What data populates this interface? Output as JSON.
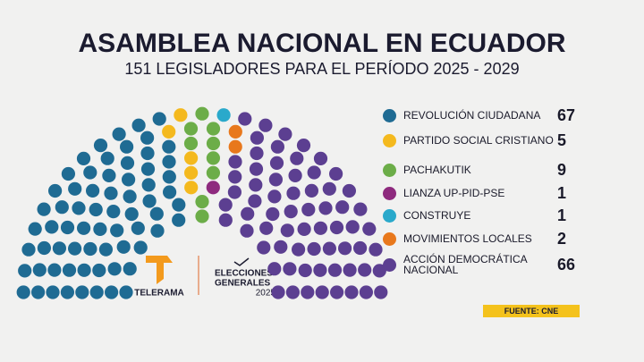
{
  "chart_data": {
    "type": "parliament",
    "title": "ASAMBLEA NACIONAL EN ECUADOR",
    "subtitle": "151 LEGISLADORES PARA EL PERÍODO 2025 - 2029",
    "categories": [
      "REVOLUCIÓN CIUDADANA",
      "PARTIDO SOCIAL CRISTIANO",
      "PACHAKUTIK",
      "LIANZA UP-PID-PSE",
      "CONSTRUYE",
      "MOVIMIENTOS LOCALES",
      "ACCIÓN DEMOCRÁTICA NACIONAL"
    ],
    "values": [
      67,
      5,
      9,
      1,
      1,
      2,
      66
    ],
    "colors": [
      "#1f6b93",
      "#f4b91e",
      "#6cad48",
      "#8e2a7e",
      "#2aa9cb",
      "#e8781c",
      "#5c3f91"
    ],
    "source": "FUENTE: CNE",
    "logo_texts": [
      "TELERAMA",
      "ELECCIONES",
      "GENERALES",
      "2025"
    ]
  }
}
